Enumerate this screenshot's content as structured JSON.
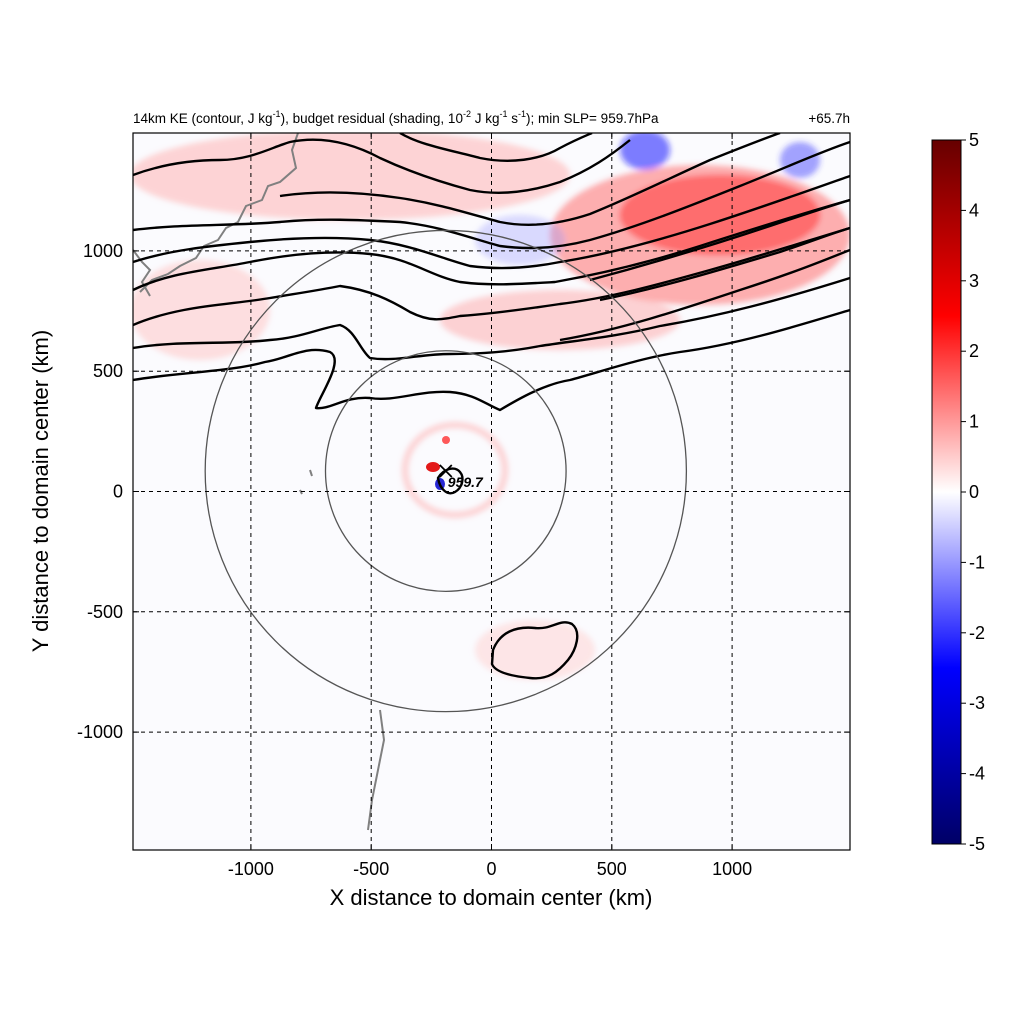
{
  "chart_data": {
    "type": "heatmap",
    "title_left_prefix": "14km KE (contour, J kg",
    "title_left_sup1": "-1",
    "title_left_mid1": "), budget residual (shading, 10",
    "title_left_sup2": "-2",
    "title_left_mid2": " J kg",
    "title_left_sup3": "-1",
    "title_left_mid3": " s",
    "title_left_sup4": "-1",
    "title_left_suffix": "); min SLP= 959.7hPa",
    "title_right": "+65.7h",
    "xlabel": "X distance to domain center (km)",
    "ylabel": "Y distance to domain center (km)",
    "xlim": [
      -1490,
      1490
    ],
    "ylim": [
      -1490,
      1490
    ],
    "xticks": [
      -1000,
      -500,
      0,
      500,
      1000
    ],
    "yticks": [
      -1000,
      -500,
      0,
      500,
      1000
    ],
    "xtick_labels": [
      "-1000",
      "-500",
      "0",
      "500",
      "1000"
    ],
    "ytick_labels": [
      "-1000",
      "-500",
      "0",
      "500",
      "1000"
    ],
    "grid": true,
    "colorbar": {
      "range": [
        -5,
        5
      ],
      "ticks": [
        -5,
        -4,
        -3,
        -2,
        -1,
        0,
        1,
        2,
        3,
        4,
        5
      ],
      "tick_labels": [
        "-5",
        "-4",
        "-3",
        "-2",
        "-1",
        "0",
        "1",
        "2",
        "3",
        "4",
        "5"
      ],
      "colors": [
        "#000066",
        "#0000ff",
        "#ffffff",
        "#ff0000",
        "#660000"
      ]
    },
    "storm_center": {
      "x": -190,
      "y": 85,
      "label": "959.7",
      "min_slp": 959.7
    },
    "range_rings_km": [
      500,
      1000
    ],
    "colors": {
      "contour": "#000000",
      "coast": "#808080",
      "ring": "#555555",
      "positive": "#ff0000",
      "negative": "#0000ff"
    }
  }
}
